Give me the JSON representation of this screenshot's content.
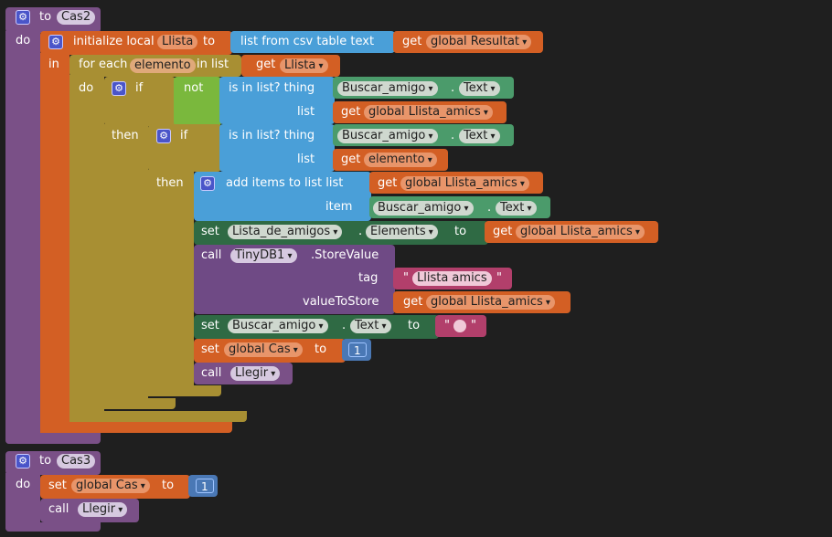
{
  "blocks": {
    "cas2": {
      "to": "to",
      "name": "Cas2",
      "do": "do",
      "init_local": "initialize local",
      "local_name": "Llista",
      "init_to": "to",
      "csv": "list from csv table  text",
      "get1": "get",
      "get1_var": "global Resultat",
      "in": "in",
      "foreach": "for each",
      "foreach_var": "elemento",
      "in_list": "in list",
      "get2": "get",
      "get2_var": "Llista",
      "do2": "do",
      "if1": "if",
      "not": "not",
      "isin1": "is in list? thing",
      "comp1": "Buscar_amigo",
      "dot1": ".",
      "prop1": "Text",
      "list1": "list",
      "get3": "get",
      "get3_var": "global Llista_amics",
      "then1": "then",
      "if2": "if",
      "isin2": "is in list? thing",
      "comp2": "Buscar_amigo",
      "dot2": ".",
      "prop2": "Text",
      "list2": "list",
      "get4": "get",
      "get4_var": "elemento",
      "then2": "then",
      "additems": "add items to list   list",
      "get5": "get",
      "get5_var": "global Llista_amics",
      "item": "item",
      "comp3": "Buscar_amigo",
      "dot3": ".",
      "prop3": "Text",
      "set1": "set",
      "comp4": "Lista_de_amigos",
      "dot4": ".",
      "prop4": "Elements",
      "to1": "to",
      "get6": "get",
      "get6_var": "global Llista_amics",
      "call1": "call",
      "comp5": "TinyDB1",
      "method": ".StoreValue",
      "tag": "tag",
      "tag_value": "Llista amics",
      "value_to_store": "valueToStore",
      "get7": "get",
      "get7_var": "global Llista_amics",
      "set2": "set",
      "comp6": "Buscar_amigo",
      "dot6": ".",
      "prop6": "Text",
      "to2": "to",
      "set3": "set",
      "set3_var": "global Cas",
      "to3": "to",
      "num1": "1",
      "call2": "call",
      "proc1": "Llegir"
    },
    "cas3": {
      "to": "to",
      "name": "Cas3",
      "do": "do",
      "set": "set",
      "var": "global Cas",
      "set_to": "to",
      "num": "1",
      "call": "call",
      "proc": "Llegir"
    }
  },
  "quote": "\"",
  "colors": {
    "background": "#1f1f1f",
    "procedure": "#7a5087",
    "variable": "#d35f24",
    "control": "#a88f33",
    "logic": "#7ab83d",
    "list": "#4a9fd8",
    "component": "#4b9b6b",
    "text": "#b23f6b",
    "math": "#4a78b5"
  }
}
